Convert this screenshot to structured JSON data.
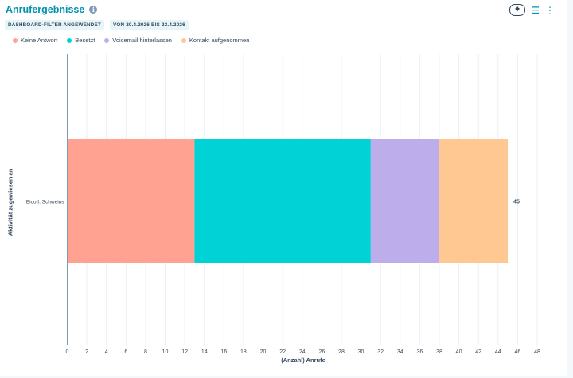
{
  "header": {
    "title": "Anrufergebnisse",
    "badges": [
      "DASHBOARD-FILTER ANGEWENDET",
      "VON 20.4.2026 BIS 23.4.2026"
    ]
  },
  "toolbar": {
    "icons": [
      "sparkle-icon",
      "filter-sliders-icon",
      "more-vertical-icon"
    ]
  },
  "colors": {
    "keine_antwort": "#ffa291",
    "besetzt": "#00d2d6",
    "voicemail": "#bdadea",
    "kontakt": "#ffc792",
    "axis": "#7c98b6",
    "grid": "#eaf0f6"
  },
  "chart_data": {
    "type": "bar",
    "orientation": "horizontal",
    "stacked": true,
    "categories": [
      "Eico I. Schweins"
    ],
    "series": [
      {
        "name": "Keine Antwort",
        "values": [
          13
        ]
      },
      {
        "name": "Besetzt",
        "values": [
          18
        ]
      },
      {
        "name": "Voicemail hinterlassen",
        "values": [
          7
        ]
      },
      {
        "name": "Kontakt aufgenommen",
        "values": [
          7
        ]
      }
    ],
    "totals": [
      45
    ],
    "xlabel": "(Anzahl) Anrufe",
    "ylabel": "Aktivität zugewiesen an",
    "xlim": [
      0,
      48
    ],
    "xticks": [
      "0",
      "2",
      "4",
      "6",
      "8",
      "10",
      "12",
      "14",
      "16",
      "18",
      "20",
      "22",
      "24",
      "26",
      "28",
      "30",
      "32",
      "34",
      "36",
      "38",
      "40",
      "42",
      "44",
      "46",
      "48"
    ],
    "grid": true,
    "legend_position": "top-left"
  }
}
